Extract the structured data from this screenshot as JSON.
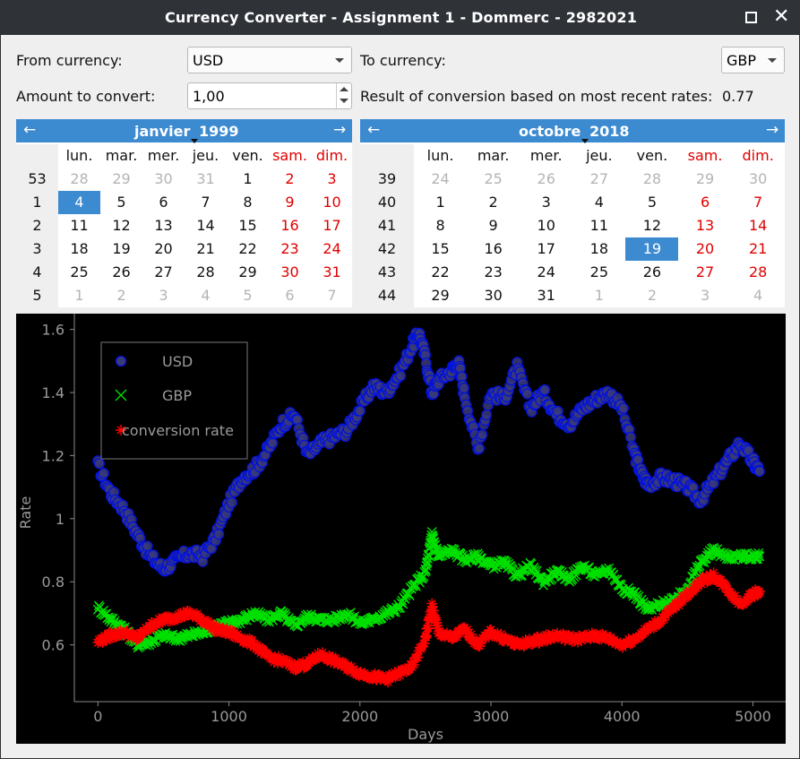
{
  "window": {
    "title": "Currency Converter - Assignment 1 - Dommerc - 2982021",
    "maximize_icon": "maximize-icon",
    "close_icon": "close-icon",
    "close_glyph": "✕"
  },
  "form": {
    "from_label": "From currency:",
    "from_value": "USD",
    "to_label": "To currency:",
    "to_value": "GBP",
    "amount_label": "Amount to convert:",
    "amount_value": "1,00",
    "result_label": "Result of conversion based on most recent rates:",
    "result_value": "0.77"
  },
  "calendars": [
    {
      "month": "janvier",
      "year": "1999",
      "prev_glyph": "←",
      "next_glyph": "→",
      "weekdays": [
        "lun.",
        "mar.",
        "mer.",
        "jeu.",
        "ven.",
        "sam.",
        "dim."
      ],
      "weeks": [
        {
          "num": "53",
          "days": [
            "28",
            "29",
            "30",
            "31",
            "1",
            "2",
            "3"
          ],
          "other": [
            true,
            true,
            true,
            true,
            false,
            false,
            false
          ]
        },
        {
          "num": "1",
          "days": [
            "4",
            "5",
            "6",
            "7",
            "8",
            "9",
            "10"
          ],
          "other": [
            false,
            false,
            false,
            false,
            false,
            false,
            false
          ]
        },
        {
          "num": "2",
          "days": [
            "11",
            "12",
            "13",
            "14",
            "15",
            "16",
            "17"
          ],
          "other": [
            false,
            false,
            false,
            false,
            false,
            false,
            false
          ]
        },
        {
          "num": "3",
          "days": [
            "18",
            "19",
            "20",
            "21",
            "22",
            "23",
            "24"
          ],
          "other": [
            false,
            false,
            false,
            false,
            false,
            false,
            false
          ]
        },
        {
          "num": "4",
          "days": [
            "25",
            "26",
            "27",
            "28",
            "29",
            "30",
            "31"
          ],
          "other": [
            false,
            false,
            false,
            false,
            false,
            false,
            false
          ]
        },
        {
          "num": "5",
          "days": [
            "1",
            "2",
            "3",
            "4",
            "5",
            "6",
            "7"
          ],
          "other": [
            true,
            true,
            true,
            true,
            true,
            true,
            true
          ]
        }
      ],
      "selected": "4"
    },
    {
      "month": "octobre",
      "year": "2018",
      "prev_glyph": "←",
      "next_glyph": "→",
      "weekdays": [
        "lun.",
        "mar.",
        "mer.",
        "jeu.",
        "ven.",
        "sam.",
        "dim."
      ],
      "weeks": [
        {
          "num": "39",
          "days": [
            "24",
            "25",
            "26",
            "27",
            "28",
            "29",
            "30"
          ],
          "other": [
            true,
            true,
            true,
            true,
            true,
            true,
            true
          ]
        },
        {
          "num": "40",
          "days": [
            "1",
            "2",
            "3",
            "4",
            "5",
            "6",
            "7"
          ],
          "other": [
            false,
            false,
            false,
            false,
            false,
            false,
            false
          ]
        },
        {
          "num": "41",
          "days": [
            "8",
            "9",
            "10",
            "11",
            "12",
            "13",
            "14"
          ],
          "other": [
            false,
            false,
            false,
            false,
            false,
            false,
            false
          ]
        },
        {
          "num": "42",
          "days": [
            "15",
            "16",
            "17",
            "18",
            "19",
            "20",
            "21"
          ],
          "other": [
            false,
            false,
            false,
            false,
            false,
            false,
            false
          ]
        },
        {
          "num": "43",
          "days": [
            "22",
            "23",
            "24",
            "25",
            "26",
            "27",
            "28"
          ],
          "other": [
            false,
            false,
            false,
            false,
            false,
            false,
            false
          ]
        },
        {
          "num": "44",
          "days": [
            "29",
            "30",
            "31",
            "1",
            "2",
            "3",
            "4"
          ],
          "other": [
            false,
            false,
            false,
            true,
            true,
            true,
            true
          ]
        }
      ],
      "selected": "19"
    }
  ],
  "colors": {
    "accent": "#3c8ad0",
    "weekend": "#e00000",
    "usd": "#0010e0",
    "gbp": "#00e000",
    "conversion": "#ff0000"
  },
  "chart_data": {
    "type": "scatter",
    "xlabel": "Days",
    "ylabel": "Rate",
    "xlim": [
      -180,
      5250
    ],
    "ylim": [
      0.42,
      1.65
    ],
    "xticks": [
      0,
      1000,
      2000,
      3000,
      4000,
      5000
    ],
    "yticks": [
      0.6,
      0.8,
      1,
      1.2,
      1.4,
      1.6
    ],
    "ytick_labels": [
      "0.6",
      "0.8",
      "1",
      "1.2",
      "1.4",
      "1.6"
    ],
    "legend_position": "top-left",
    "series": [
      {
        "name": "USD",
        "marker": "circle",
        "x": [
          0,
          100,
          200,
          300,
          400,
          500,
          600,
          700,
          800,
          900,
          1000,
          1100,
          1200,
          1300,
          1400,
          1500,
          1600,
          1700,
          1800,
          1900,
          2000,
          2100,
          2200,
          2300,
          2400,
          2450,
          2500,
          2550,
          2600,
          2700,
          2750,
          2800,
          2900,
          3000,
          3100,
          3200,
          3300,
          3400,
          3500,
          3600,
          3700,
          3800,
          3900,
          4000,
          4100,
          4150,
          4200,
          4300,
          4400,
          4500,
          4600,
          4700,
          4800,
          4900,
          5000,
          5050
        ],
        "y": [
          1.17,
          1.08,
          1.03,
          0.95,
          0.88,
          0.84,
          0.87,
          0.89,
          0.88,
          0.94,
          1.05,
          1.13,
          1.16,
          1.22,
          1.3,
          1.33,
          1.2,
          1.24,
          1.26,
          1.28,
          1.35,
          1.42,
          1.4,
          1.46,
          1.55,
          1.59,
          1.51,
          1.4,
          1.44,
          1.47,
          1.5,
          1.39,
          1.22,
          1.4,
          1.38,
          1.48,
          1.35,
          1.4,
          1.33,
          1.3,
          1.35,
          1.38,
          1.4,
          1.35,
          1.2,
          1.14,
          1.11,
          1.13,
          1.12,
          1.1,
          1.06,
          1.12,
          1.18,
          1.24,
          1.18,
          1.15
        ]
      },
      {
        "name": "GBP",
        "marker": "x",
        "x": [
          0,
          100,
          200,
          300,
          400,
          500,
          600,
          700,
          800,
          900,
          1000,
          1100,
          1200,
          1300,
          1400,
          1500,
          1600,
          1700,
          1800,
          1900,
          2000,
          2100,
          2200,
          2300,
          2400,
          2500,
          2550,
          2600,
          2700,
          2800,
          2900,
          3000,
          3100,
          3200,
          3300,
          3400,
          3500,
          3600,
          3700,
          3800,
          3900,
          4000,
          4100,
          4200,
          4300,
          4400,
          4500,
          4600,
          4700,
          4800,
          4900,
          5000,
          5050
        ],
        "y": [
          0.72,
          0.68,
          0.65,
          0.6,
          0.61,
          0.63,
          0.62,
          0.63,
          0.64,
          0.66,
          0.67,
          0.68,
          0.7,
          0.68,
          0.7,
          0.66,
          0.69,
          0.68,
          0.68,
          0.7,
          0.67,
          0.68,
          0.7,
          0.72,
          0.78,
          0.83,
          0.95,
          0.88,
          0.9,
          0.87,
          0.88,
          0.85,
          0.86,
          0.82,
          0.85,
          0.8,
          0.83,
          0.81,
          0.85,
          0.82,
          0.84,
          0.78,
          0.76,
          0.71,
          0.73,
          0.74,
          0.78,
          0.86,
          0.9,
          0.88,
          0.88,
          0.88,
          0.88
        ]
      },
      {
        "name": "conversion rate",
        "marker": "star",
        "x": [
          0,
          100,
          200,
          300,
          400,
          500,
          600,
          700,
          800,
          900,
          1000,
          1100,
          1200,
          1300,
          1400,
          1500,
          1600,
          1700,
          1800,
          1900,
          2000,
          2100,
          2200,
          2300,
          2400,
          2500,
          2550,
          2600,
          2700,
          2800,
          2900,
          3000,
          3100,
          3200,
          3300,
          3400,
          3500,
          3600,
          3700,
          3800,
          3900,
          4000,
          4100,
          4200,
          4300,
          4400,
          4500,
          4600,
          4700,
          4800,
          4900,
          5000,
          5050
        ],
        "y": [
          0.61,
          0.63,
          0.64,
          0.62,
          0.66,
          0.68,
          0.69,
          0.7,
          0.68,
          0.65,
          0.64,
          0.62,
          0.6,
          0.56,
          0.55,
          0.53,
          0.54,
          0.57,
          0.55,
          0.53,
          0.51,
          0.5,
          0.49,
          0.51,
          0.53,
          0.62,
          0.72,
          0.64,
          0.62,
          0.65,
          0.6,
          0.64,
          0.62,
          0.6,
          0.61,
          0.62,
          0.63,
          0.62,
          0.62,
          0.63,
          0.62,
          0.6,
          0.62,
          0.65,
          0.68,
          0.72,
          0.76,
          0.8,
          0.82,
          0.78,
          0.73,
          0.76,
          0.77
        ]
      }
    ]
  }
}
